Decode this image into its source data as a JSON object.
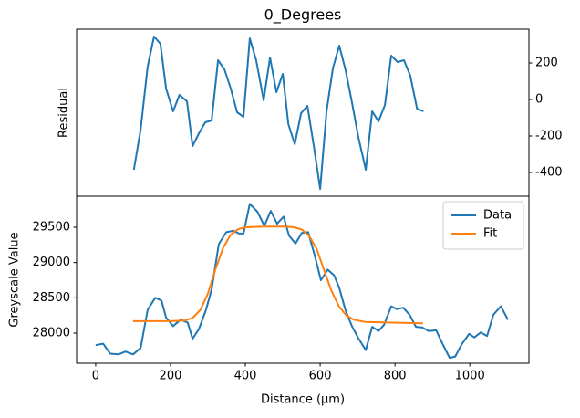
{
  "chart_data": [
    {
      "type": "line",
      "title": "0_Degrees",
      "ylabel": "Residual",
      "color": "#1f77b4",
      "y_axis_side": "right",
      "x": [
        102,
        120,
        139,
        156,
        173,
        188,
        207,
        224,
        244,
        259,
        276,
        293,
        310,
        327,
        344,
        361,
        378,
        395,
        412,
        429,
        449,
        466,
        483,
        500,
        515,
        532,
        549,
        566,
        583,
        600,
        617,
        634,
        651,
        668,
        685,
        702,
        722,
        739,
        756,
        773,
        790,
        807,
        824,
        841,
        859,
        876
      ],
      "values": [
        -385,
        -165,
        180,
        345,
        305,
        60,
        -65,
        25,
        -10,
        -255,
        -185,
        -125,
        -115,
        215,
        165,
        60,
        -70,
        -95,
        335,
        215,
        -5,
        230,
        40,
        140,
        -135,
        -245,
        -75,
        -35,
        -255,
        -490,
        -65,
        170,
        295,
        160,
        -15,
        -205,
        -385,
        -65,
        -120,
        -30,
        240,
        205,
        215,
        130,
        -50,
        -65
      ],
      "xlim": [
        -51,
        1158
      ],
      "ylim": [
        -530,
        385
      ],
      "yticks": [
        -400,
        -200,
        0,
        200
      ]
    },
    {
      "type": "line",
      "xlabel": "Distance (μm)",
      "ylabel": "Greyscale Value",
      "legend": "upper right",
      "xlim": [
        -51,
        1158
      ],
      "ylim": [
        27574,
        29939
      ],
      "xticks": [
        0,
        200,
        400,
        600,
        800,
        1000
      ],
      "yticks": [
        28000,
        28500,
        29000,
        29500
      ],
      "series": [
        {
          "name": "Data",
          "color": "#1f77b4",
          "x": [
            0,
            20,
            39,
            61,
            80,
            100,
            120,
            139,
            159,
            176,
            188,
            207,
            227,
            246,
            259,
            276,
            295,
            310,
            329,
            349,
            368,
            383,
            395,
            412,
            432,
            451,
            468,
            485,
            502,
            517,
            534,
            551,
            568,
            585,
            602,
            620,
            637,
            651,
            668,
            685,
            702,
            722,
            739,
            756,
            771,
            790,
            805,
            822,
            839,
            856,
            873,
            890,
            910,
            927,
            946,
            961,
            978,
            998,
            1012,
            1029,
            1046,
            1063,
            1083,
            1102
          ],
          "values": [
            27830,
            27850,
            27710,
            27700,
            27740,
            27700,
            27790,
            28330,
            28500,
            28460,
            28220,
            28100,
            28190,
            28150,
            27920,
            28060,
            28330,
            28620,
            29260,
            29430,
            29450,
            29410,
            29410,
            29830,
            29720,
            29520,
            29730,
            29550,
            29650,
            29380,
            29270,
            29420,
            29430,
            29110,
            28750,
            28900,
            28820,
            28640,
            28320,
            28100,
            27930,
            27760,
            28090,
            28030,
            28120,
            28380,
            28340,
            28360,
            28260,
            28090,
            28080,
            28030,
            28040,
            27850,
            27650,
            27670,
            27840,
            27990,
            27940,
            28010,
            27960,
            28260,
            28380,
            28190
          ]
        },
        {
          "name": "Fit",
          "color": "#ff7f0e",
          "x": [
            100,
            150,
            200,
            240,
            260,
            280,
            300,
            320,
            340,
            360,
            380,
            400,
            450,
            500,
            530,
            550,
            570,
            590,
            610,
            630,
            650,
            670,
            690,
            720,
            780,
            875
          ],
          "values": [
            28170,
            28170,
            28170,
            28180,
            28220,
            28330,
            28560,
            28900,
            29200,
            29390,
            29470,
            29500,
            29510,
            29510,
            29500,
            29470,
            29380,
            29200,
            28900,
            28600,
            28380,
            28250,
            28190,
            28160,
            28150,
            28140
          ]
        }
      ]
    }
  ]
}
